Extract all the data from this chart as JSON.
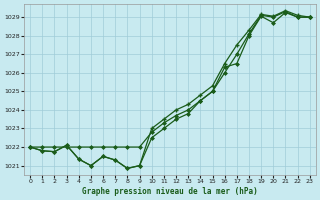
{
  "title": "Graphe pression niveau de la mer (hPa)",
  "bg_color": "#c8eaf0",
  "grid_color": "#a0ccd8",
  "line_color": "#1a5c1a",
  "xlim": [
    -0.5,
    23.5
  ],
  "ylim": [
    1020.5,
    1029.7
  ],
  "yticks": [
    1021,
    1022,
    1023,
    1024,
    1025,
    1026,
    1027,
    1028,
    1029
  ],
  "xticks": [
    0,
    1,
    2,
    3,
    4,
    5,
    6,
    7,
    8,
    9,
    10,
    11,
    12,
    13,
    14,
    15,
    16,
    17,
    18,
    19,
    20,
    21,
    22,
    23
  ],
  "s_flat": [
    1022.0,
    1022.0,
    1022.0,
    1022.0,
    1022.0,
    1022.0,
    1022.0,
    1022.0,
    1022.0,
    1022.0,
    1022.8,
    1023.3,
    1023.7,
    1024.0,
    1024.5,
    1025.0,
    1026.0,
    1027.0,
    1028.1,
    1029.1,
    1029.0,
    1029.3,
    1029.0,
    1029.0
  ],
  "s_dip1": [
    1022.0,
    1021.8,
    1021.75,
    1022.1,
    1021.35,
    1021.0,
    1021.5,
    1021.3,
    1020.85,
    1021.0,
    1023.0,
    1023.5,
    1024.0,
    1024.3,
    1024.8,
    1025.3,
    1026.5,
    1027.5,
    1028.3,
    1029.15,
    1029.05,
    1029.35,
    1029.1,
    1029.0
  ],
  "s_dip2": [
    1022.0,
    1021.8,
    1021.75,
    1022.1,
    1021.35,
    1021.0,
    1021.5,
    1021.3,
    1020.85,
    1021.0,
    1022.5,
    1023.0,
    1023.5,
    1023.8,
    1024.5,
    1025.0,
    1026.3,
    1026.5,
    1028.0,
    1029.05,
    1028.7,
    1029.25,
    1029.0,
    1029.0
  ]
}
